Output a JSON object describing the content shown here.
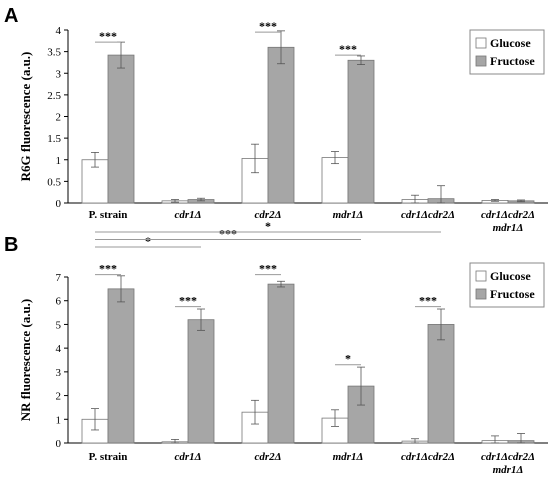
{
  "chart_data": [
    {
      "panel_letter": "A",
      "type": "bar",
      "ylabel": "R6G fluorescence (a.u.)",
      "ylim": [
        0,
        4
      ],
      "yticks": [
        "0",
        "0.5",
        "1",
        "1.5",
        "2",
        "2.5",
        "3",
        "3.5",
        "4"
      ],
      "categories": [
        "P. strain",
        "cdr1Δ",
        "cdr2Δ",
        "mdr1Δ",
        "cdr1Δcdr2Δ",
        "cdr1Δcdr2Δ\nmdr1Δ"
      ],
      "italic_categories": [
        false,
        true,
        true,
        true,
        true,
        true
      ],
      "legend": {
        "position": "top-right"
      },
      "series": [
        {
          "name": "Glucose",
          "color": "#ffffff",
          "values": [
            1.0,
            0.05,
            1.03,
            1.05,
            0.08,
            0.06
          ],
          "errors": [
            0.17,
            0.03,
            0.33,
            0.14,
            0.1,
            0.02
          ]
        },
        {
          "name": "Fructose",
          "color": "#a6a6a6",
          "values": [
            3.42,
            0.08,
            3.6,
            3.3,
            0.1,
            0.05
          ],
          "errors": [
            0.3,
            0.03,
            0.38,
            0.1,
            0.3,
            0.02
          ]
        }
      ],
      "significance": [
        {
          "from": 0,
          "to": 0,
          "level": 3.72,
          "label": "***"
        },
        {
          "from": 2,
          "to": 2,
          "level": 3.95,
          "label": "***"
        },
        {
          "from": 3,
          "to": 3,
          "level": 3.42,
          "label": "***"
        }
      ]
    },
    {
      "panel_letter": "B",
      "type": "bar",
      "ylabel": "NR fluorescence (a.u.)",
      "ylim": [
        0,
        7
      ],
      "yticks": [
        "0",
        "1",
        "2",
        "3",
        "4",
        "5",
        "6",
        "7"
      ],
      "categories": [
        "P. strain",
        "cdr1Δ",
        "cdr2Δ",
        "mdr1Δ",
        "cdr1Δcdr2Δ",
        "cdr1Δcdr2Δ\nmdr1Δ"
      ],
      "italic_categories": [
        false,
        true,
        true,
        true,
        true,
        true
      ],
      "legend": {
        "position": "top-right"
      },
      "series": [
        {
          "name": "Glucose",
          "color": "#ffffff",
          "values": [
            1.0,
            0.05,
            1.3,
            1.05,
            0.08,
            0.1
          ],
          "errors": [
            0.45,
            0.1,
            0.5,
            0.35,
            0.1,
            0.2
          ]
        },
        {
          "name": "Fructose",
          "color": "#a6a6a6",
          "values": [
            6.5,
            5.2,
            6.7,
            2.4,
            5.0,
            0.1
          ],
          "errors": [
            0.55,
            0.45,
            0.12,
            0.8,
            0.65,
            0.3
          ]
        }
      ],
      "significance": [
        {
          "from": 0,
          "to": 0,
          "level": 7.1,
          "label": "***"
        },
        {
          "from": 1,
          "to": 1,
          "level": 5.75,
          "label": "***"
        },
        {
          "from": 2,
          "to": 2,
          "level": 7.1,
          "label": "***"
        },
        {
          "from": 3,
          "to": 3,
          "level": 3.3,
          "label": "*"
        },
        {
          "from": 4,
          "to": 4,
          "level": 5.75,
          "label": "***"
        },
        {
          "from": 0,
          "to": 1,
          "level": 7.6,
          "label": "*"
        },
        {
          "from": 0,
          "to": 3,
          "level": 8.3,
          "label": "***"
        },
        {
          "from": 0,
          "to": 4,
          "level": 9.0,
          "label": "*"
        }
      ]
    }
  ]
}
